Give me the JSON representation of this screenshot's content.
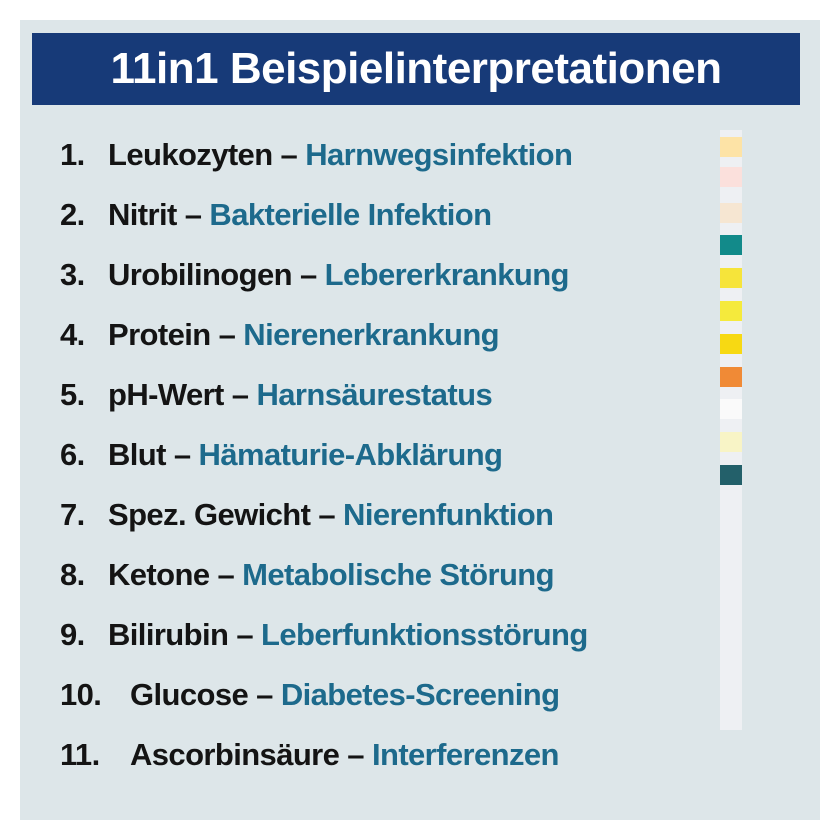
{
  "header": {
    "title": "11in1 Beispielinterpretationen"
  },
  "items": [
    {
      "number": "1.",
      "term": "Leukozyten",
      "separator": "–",
      "meaning": "Harnwegsinfektion"
    },
    {
      "number": "2.",
      "term": "Nitrit",
      "separator": "–",
      "meaning": "Bakterielle Infektion"
    },
    {
      "number": "3.",
      "term": "Urobilinogen",
      "separator": "–",
      "meaning": "Lebererkrankung"
    },
    {
      "number": "4.",
      "term": "Protein",
      "separator": "–",
      "meaning": "Nierenerkrankung"
    },
    {
      "number": "5.",
      "term": "pH-Wert",
      "separator": "–",
      "meaning": "Harnsäurestatus"
    },
    {
      "number": "6.",
      "term": "Blut",
      "separator": "–",
      "meaning": "Hämaturie-Abklärung"
    },
    {
      "number": "7.",
      "term": "Spez. Gewicht",
      "separator": "–",
      "meaning": "Nierenfunktion"
    },
    {
      "number": "8.",
      "term": "Ketone",
      "separator": "–",
      "meaning": "Metabolische Störung"
    },
    {
      "number": "9.",
      "term": "Bilirubin",
      "separator": "–",
      "meaning": "Leberfunktionsstörung"
    },
    {
      "number": "10.",
      "term": "Glucose",
      "separator": "–",
      "meaning": "Diabetes-Screening"
    },
    {
      "number": "11.",
      "term": "Ascorbinsäure",
      "separator": "–",
      "meaning": "Interferenzen"
    }
  ]
}
